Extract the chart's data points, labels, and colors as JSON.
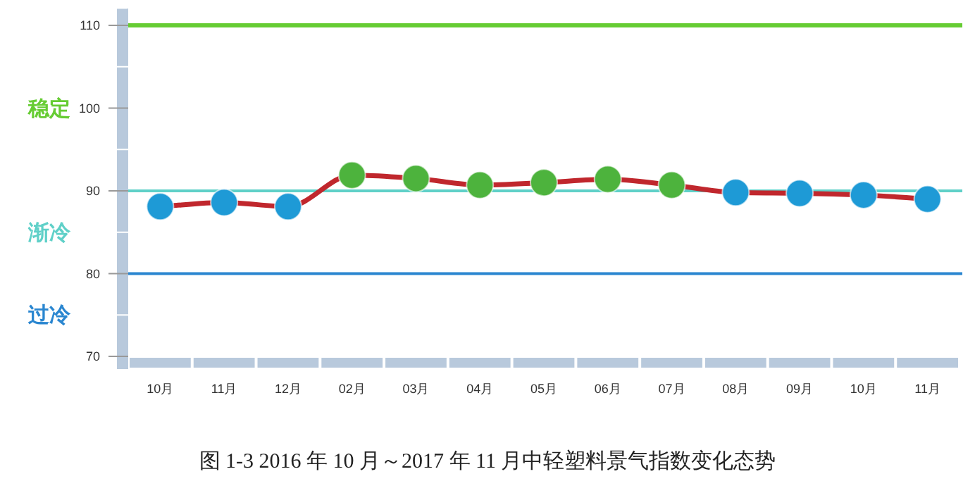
{
  "chart_data": {
    "type": "line",
    "title": "图 1-3   2016 年 10 月～2017 年 11 月中轻塑料景气指数变化态势",
    "categories": [
      "10月",
      "11月",
      "12月",
      "02月",
      "03月",
      "04月",
      "05月",
      "06月",
      "07月",
      "08月",
      "09月",
      "10月",
      "11月"
    ],
    "series": [
      {
        "color": "#c0272d",
        "values": [
          88.1,
          88.6,
          88.1,
          91.9,
          91.5,
          90.7,
          91.0,
          91.4,
          90.7,
          89.8,
          89.7,
          89.5,
          89.0
        ],
        "colors": [
          "#1e9ad6",
          "#1e9ad6",
          "#1e9ad6",
          "#4db33d",
          "#4db33d",
          "#4db33d",
          "#4db33d",
          "#4db33d",
          "#4db33d",
          "#1e9ad6",
          "#1e9ad6",
          "#1e9ad6",
          "#1e9ad6"
        ]
      }
    ],
    "ylim": [
      70,
      112
    ],
    "yticks": [
      70,
      {
        "value": 75,
        "label": null
      },
      80,
      {
        "value": 85,
        "label": null
      },
      90,
      {
        "value": 95,
        "label": null
      },
      100,
      {
        "value": 105,
        "label": null
      },
      110
    ],
    "ref_lines": [
      {
        "axis": "y",
        "value": 110,
        "color": "#66cc33"
      },
      {
        "axis": "y",
        "value": 90,
        "color": "#5fd0c8"
      },
      {
        "axis": "y",
        "value": 80,
        "color": "#2a86d0"
      }
    ],
    "annotations": [
      "稳定",
      "渐冷",
      "过冷"
    ],
    "marker": "circle"
  }
}
